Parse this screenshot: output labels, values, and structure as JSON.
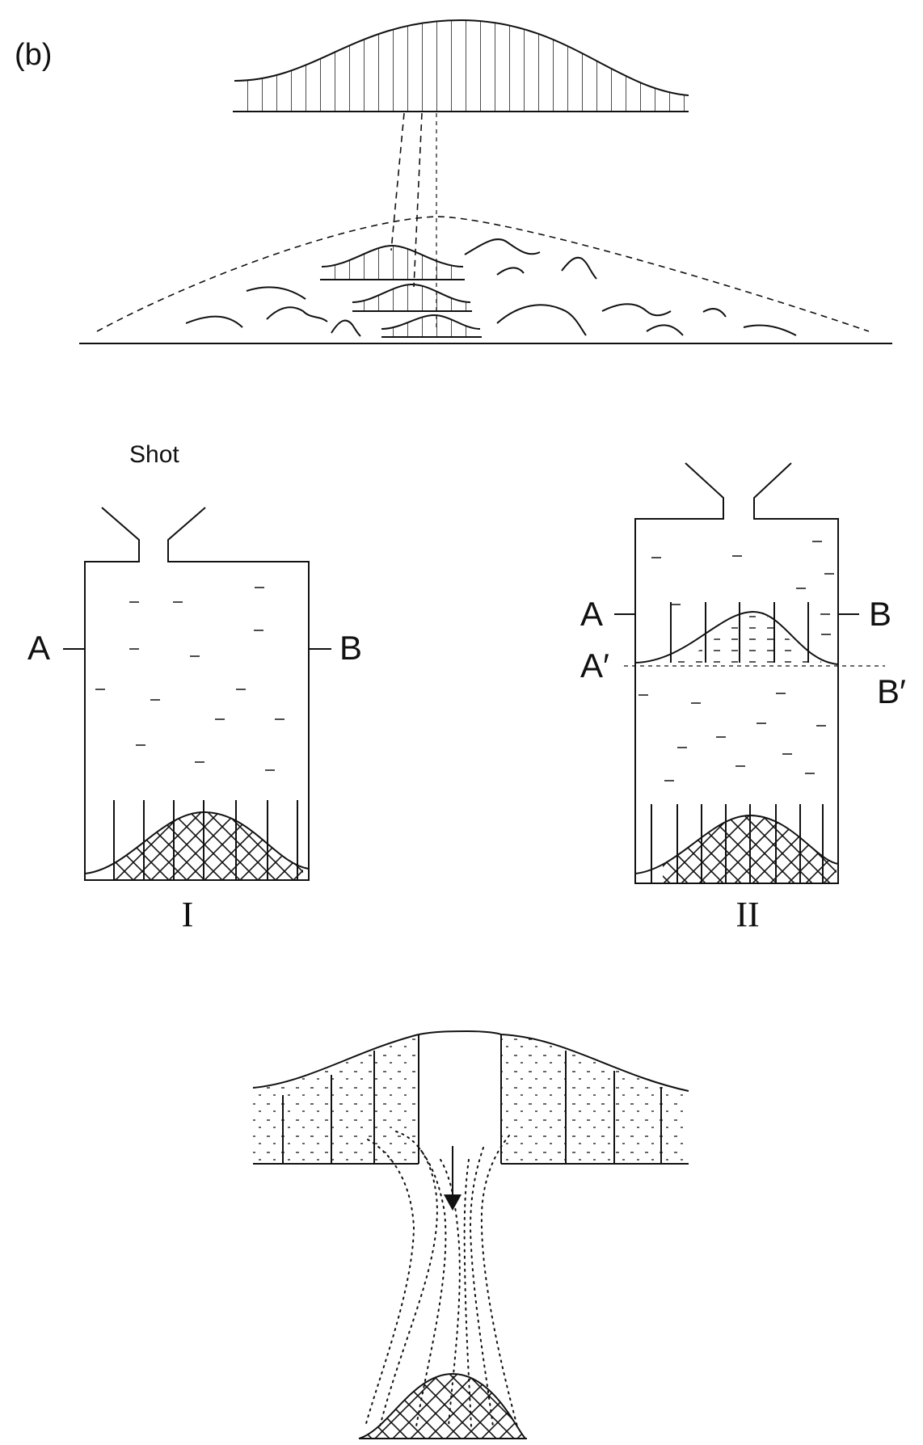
{
  "panel_label": "(b)",
  "shot_label": "Shot",
  "container_I": {
    "caption": "I",
    "left_label": "A",
    "right_label": "B"
  },
  "container_II": {
    "caption": "II",
    "left_label": "A",
    "right_label": "B",
    "left_label_lower": "A′",
    "right_label_lower": "B′"
  }
}
